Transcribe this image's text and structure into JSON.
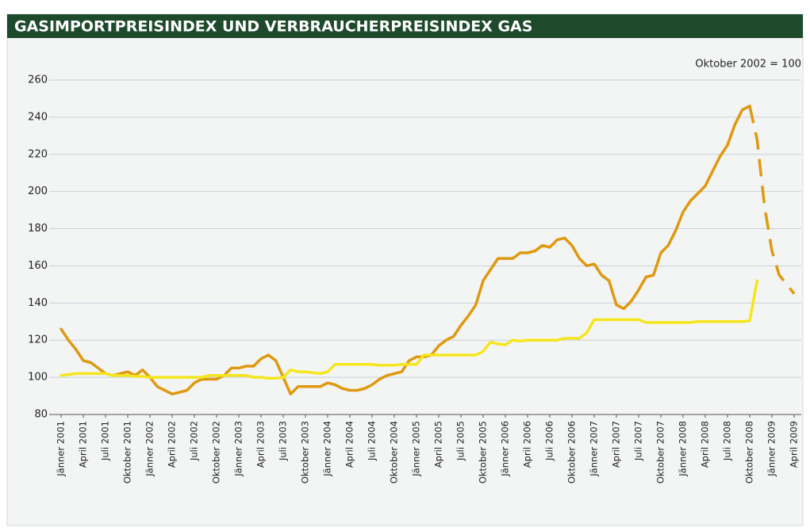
{
  "chart_data": {
    "type": "line",
    "title": "GASIMPORTPREISINDEX UND VERBRAUCHERPREISINDEX GAS",
    "annotation": "Oktober 2002 = 100",
    "categories": [
      "Jänner 2001",
      null,
      null,
      "April 2001",
      null,
      null,
      "Juli 2001",
      null,
      null,
      "Oktober 2001",
      null,
      null,
      "Jänner 2002",
      null,
      null,
      "April 2002",
      null,
      null,
      "Juli 2002",
      null,
      null,
      "Oktober 2002",
      null,
      null,
      "Jänner 2003",
      null,
      null,
      "April 2003",
      null,
      null,
      "Juli 2003",
      null,
      null,
      "Oktober 2003",
      null,
      null,
      "Jänner 2004",
      null,
      null,
      "April 2004",
      null,
      null,
      "Juli 2004",
      null,
      null,
      "Oktober 2004",
      null,
      null,
      "Jänner 2005",
      null,
      null,
      "April 2005",
      null,
      null,
      "Juli 2005",
      null,
      null,
      "Oktober 2005",
      null,
      null,
      "Jänner 2006",
      null,
      null,
      "April 2006",
      null,
      null,
      "Juli 2006",
      null,
      null,
      "Oktober 2006",
      null,
      null,
      "Jänner 2007",
      null,
      null,
      "April 2007",
      null,
      null,
      "Juli 2007",
      null,
      null,
      "Oktober 2007",
      null,
      null,
      "Jänner 2008",
      null,
      null,
      "April 2008",
      null,
      null,
      "Juli 2008",
      null,
      null,
      "Oktober 2008",
      null,
      null,
      "Jänner 2009",
      null,
      null,
      "April 2009"
    ],
    "series": [
      {
        "color": "#e0990f",
        "dashed": false,
        "values": [
          126,
          120,
          115,
          109,
          108,
          105,
          102,
          101,
          102,
          103,
          101,
          104,
          100,
          95,
          93,
          91,
          92,
          93,
          97,
          99,
          99,
          99,
          101,
          105,
          105,
          106,
          106,
          110,
          112,
          109,
          100,
          91,
          95,
          95,
          95,
          95,
          97,
          96,
          94,
          93,
          93,
          94,
          96,
          99,
          101,
          102,
          103,
          109,
          111,
          111,
          112,
          117,
          120,
          122,
          128,
          133,
          139,
          152,
          158,
          164,
          164,
          164,
          167,
          167,
          168,
          171,
          170,
          174,
          175,
          171,
          164,
          160,
          161,
          155,
          152,
          139,
          137,
          141,
          147,
          154,
          155,
          167,
          171,
          179,
          189,
          195,
          199,
          203,
          211,
          219,
          225,
          236,
          244,
          246,
          null,
          null,
          null,
          null,
          null,
          null
        ]
      },
      {
        "color": "#e0990f",
        "dashed": true,
        "values": [
          null,
          null,
          null,
          null,
          null,
          null,
          null,
          null,
          null,
          null,
          null,
          null,
          null,
          null,
          null,
          null,
          null,
          null,
          null,
          null,
          null,
          null,
          null,
          null,
          null,
          null,
          null,
          null,
          null,
          null,
          null,
          null,
          null,
          null,
          null,
          null,
          null,
          null,
          null,
          null,
          null,
          null,
          null,
          null,
          null,
          null,
          null,
          null,
          null,
          null,
          null,
          null,
          null,
          null,
          null,
          null,
          null,
          null,
          null,
          null,
          null,
          null,
          null,
          null,
          null,
          null,
          null,
          null,
          null,
          null,
          null,
          null,
          null,
          null,
          null,
          null,
          null,
          null,
          null,
          null,
          null,
          null,
          null,
          null,
          null,
          null,
          null,
          null,
          null,
          null,
          null,
          null,
          null,
          246,
          228,
          192,
          168,
          155,
          150,
          145
        ]
      },
      {
        "color": "#f5e61c",
        "dashed": false,
        "values": [
          101,
          101.5,
          102,
          102,
          102,
          102,
          102,
          101,
          101,
          101,
          100.5,
          100.5,
          100,
          100,
          100,
          100,
          100,
          100,
          100,
          100,
          101,
          101,
          101,
          101,
          101,
          101,
          100,
          100,
          99.5,
          99.5,
          100,
          104,
          103,
          103,
          102.5,
          102,
          103,
          107,
          107,
          107,
          107,
          107,
          107,
          106.5,
          106.5,
          106.5,
          107,
          107,
          107,
          112,
          112,
          112,
          112,
          112,
          112,
          112,
          112,
          114,
          119,
          118,
          117.5,
          120,
          119.5,
          120,
          120,
          120,
          120,
          120,
          121,
          121,
          121,
          124,
          131,
          131,
          131,
          131,
          131,
          131,
          131,
          129.5,
          129.5,
          129.5,
          129.5,
          129.5,
          129.5,
          129.5,
          130,
          130,
          130,
          130,
          130,
          130,
          130,
          130.5,
          152,
          null,
          null,
          null,
          null,
          null
        ]
      }
    ],
    "ylim": [
      80,
      260
    ],
    "yticks": [
      80,
      100,
      120,
      140,
      160,
      180,
      200,
      220,
      240,
      260
    ],
    "grid": true
  }
}
